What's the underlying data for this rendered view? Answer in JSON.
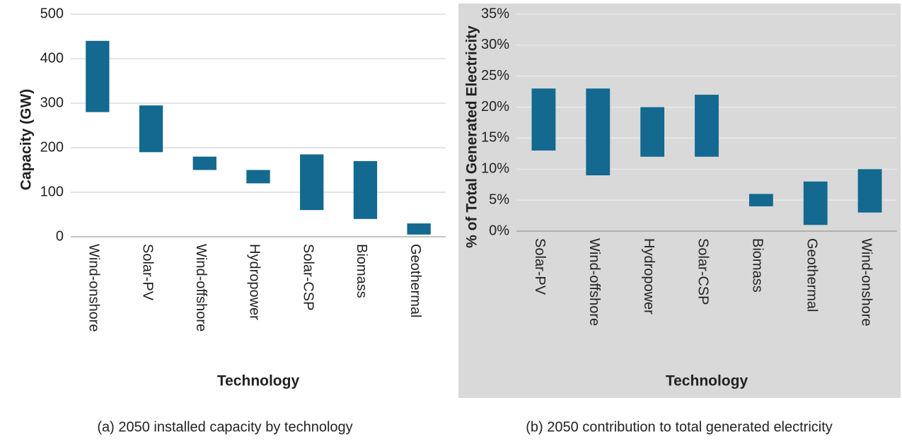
{
  "chart_data": [
    {
      "type": "range_bar",
      "y_label": "Capacity (GW)",
      "x_label": "Technology",
      "caption": "(a) 2050 installed capacity by technology",
      "categories": [
        "Wind-onshore",
        "Solar-PV",
        "Wind-offshore",
        "Hydropower",
        "Solar-CSP",
        "Biomass",
        "Geothermal"
      ],
      "low": [
        280,
        190,
        150,
        120,
        60,
        40,
        5
      ],
      "high": [
        440,
        295,
        180,
        150,
        185,
        170,
        30
      ],
      "color": "#13698f",
      "ylim": [
        0,
        500
      ],
      "yticks": [
        0,
        100,
        200,
        300,
        400,
        500
      ],
      "grid": true
    },
    {
      "type": "range_bar",
      "y_label": "% of Total Generated Electricity",
      "x_label": "Technology",
      "caption": "(b) 2050 contribution to total generated electricity",
      "categories": [
        "Solar-PV",
        "Wind-offshore",
        "Hydropower",
        "Solar-CSP",
        "Biomass",
        "Geothermal",
        "Wind-onshore"
      ],
      "low": [
        13,
        9,
        12,
        12,
        4,
        1,
        3
      ],
      "high": [
        23,
        23,
        20,
        22,
        6,
        8,
        10
      ],
      "color": "#13698f",
      "ylim": [
        0,
        35
      ],
      "yticks": [
        {
          "value": 0,
          "label": "0%"
        },
        {
          "value": 5,
          "label": "5%"
        },
        {
          "value": 10,
          "label": "10%"
        },
        {
          "value": 15,
          "label": "15%"
        },
        {
          "value": 20,
          "label": "20%"
        },
        {
          "value": 25,
          "label": "25%"
        },
        {
          "value": 30,
          "label": "30%"
        },
        {
          "value": 35,
          "label": "35%"
        }
      ],
      "grid": true
    }
  ]
}
